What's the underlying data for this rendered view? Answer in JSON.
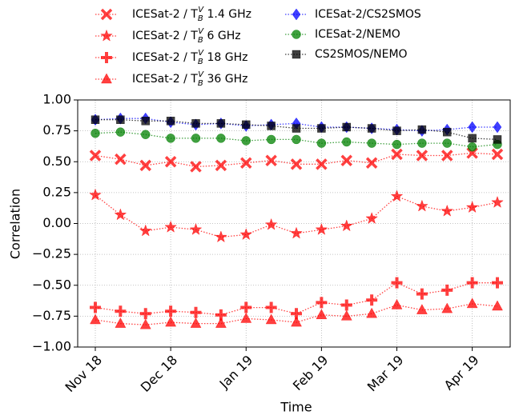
{
  "chart_data": {
    "type": "line",
    "categories": [
      "Nov 18",
      null,
      null,
      "Dec 18",
      null,
      null,
      "Jan 19",
      null,
      null,
      "Feb 19",
      null,
      null,
      "Mar 19",
      null,
      null,
      "Apr 19",
      null
    ],
    "y_label": "Correlation",
    "x_label": "Time",
    "ylim": [
      -1,
      1
    ],
    "yticks": [
      {
        "value": -1,
        "label": "−1.00"
      },
      {
        "value": -0.75,
        "label": "−0.75"
      },
      {
        "value": -0.5,
        "label": "−0.50"
      },
      {
        "value": -0.25,
        "label": "−0.25"
      },
      {
        "value": 0,
        "label": "0.00"
      },
      {
        "value": 0.25,
        "label": "0.25"
      },
      {
        "value": 0.5,
        "label": "0.50"
      },
      {
        "value": 0.75,
        "label": "0.75"
      },
      {
        "value": 1,
        "label": "1.00"
      }
    ],
    "grid": true,
    "series": [
      {
        "name": "ICESat-2 / TBV 1.4 GHz",
        "color": "#ff0000",
        "marker": "x",
        "values": [
          0.55,
          0.52,
          0.47,
          0.5,
          0.46,
          0.47,
          0.49,
          0.51,
          0.48,
          0.48,
          0.51,
          0.49,
          0.56,
          0.55,
          0.55,
          0.57,
          0.56
        ]
      },
      {
        "name": "ICESat-2 / TBV 6 GHz",
        "color": "#ff0000",
        "marker": "star",
        "values": [
          0.23,
          0.07,
          -0.06,
          -0.03,
          -0.05,
          -0.11,
          -0.09,
          -0.01,
          -0.08,
          -0.05,
          -0.02,
          0.04,
          0.22,
          0.14,
          0.1,
          0.13,
          0.17
        ]
      },
      {
        "name": "ICESat-2 / TBV 18 GHz",
        "color": "#ff0000",
        "marker": "plus",
        "values": [
          -0.68,
          -0.71,
          -0.73,
          -0.71,
          -0.72,
          -0.74,
          -0.68,
          -0.68,
          -0.73,
          -0.64,
          -0.66,
          -0.62,
          -0.48,
          -0.57,
          -0.54,
          -0.48,
          -0.48
        ]
      },
      {
        "name": "ICESat-2 / TBV 36 GHz",
        "color": "#ff0000",
        "marker": "triangle",
        "values": [
          -0.78,
          -0.81,
          -0.82,
          -0.8,
          -0.81,
          -0.81,
          -0.77,
          -0.78,
          -0.8,
          -0.74,
          -0.75,
          -0.73,
          -0.66,
          -0.7,
          -0.69,
          -0.65,
          -0.67
        ]
      },
      {
        "name": "ICESat-2/CS2SMOS",
        "color": "#0000ff",
        "marker": "diamond",
        "values": [
          0.84,
          0.85,
          0.85,
          0.82,
          0.8,
          0.81,
          0.79,
          0.8,
          0.81,
          0.78,
          0.78,
          0.77,
          0.76,
          0.75,
          0.76,
          0.78,
          0.78
        ]
      },
      {
        "name": "ICESat-2/NEMO",
        "color": "#008000",
        "marker": "circle",
        "values": [
          0.73,
          0.74,
          0.72,
          0.69,
          0.69,
          0.69,
          0.67,
          0.68,
          0.68,
          0.65,
          0.66,
          0.65,
          0.64,
          0.65,
          0.65,
          0.62,
          0.64
        ]
      },
      {
        "name": "CS2SMOS/NEMO",
        "color": "#000000",
        "marker": "square",
        "values": [
          0.84,
          0.84,
          0.83,
          0.83,
          0.81,
          0.81,
          0.8,
          0.79,
          0.77,
          0.77,
          0.78,
          0.77,
          0.75,
          0.76,
          0.74,
          0.69,
          0.68
        ]
      }
    ]
  }
}
